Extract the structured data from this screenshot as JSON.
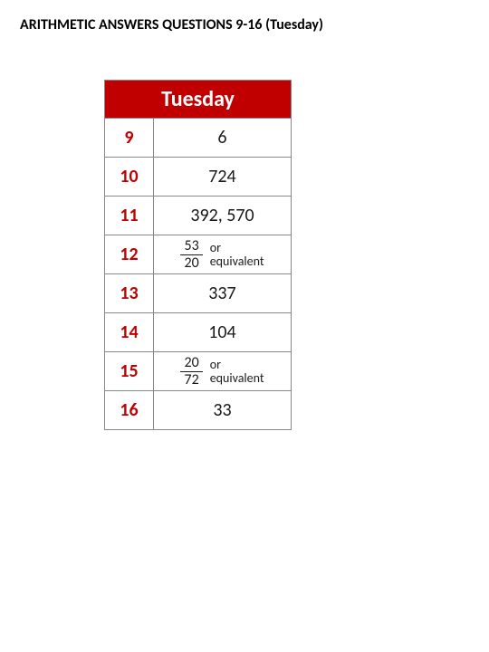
{
  "title": "ARITHMETIC ANSWERS QUESTIONS 9-16  (Tuesday)",
  "table": {
    "header": "Tuesday",
    "header_bg": "#c00000",
    "header_color": "#ffffff",
    "qnum_color": "#c00000",
    "border_color": "#888888",
    "rows": [
      {
        "q": "9",
        "type": "plain",
        "value": "6"
      },
      {
        "q": "10",
        "type": "plain",
        "value": "724"
      },
      {
        "q": "11",
        "type": "plain",
        "value": "392, 570"
      },
      {
        "q": "12",
        "type": "fraction",
        "num": "53",
        "den": "20",
        "note1": "or",
        "note2": "equivalent"
      },
      {
        "q": "13",
        "type": "plain",
        "value": "337"
      },
      {
        "q": "14",
        "type": "plain",
        "value": "104"
      },
      {
        "q": "15",
        "type": "fraction",
        "num": "20",
        "den": "72",
        "note1": "or",
        "note2": "equivalent"
      },
      {
        "q": "16",
        "type": "plain",
        "value": "33"
      }
    ]
  }
}
